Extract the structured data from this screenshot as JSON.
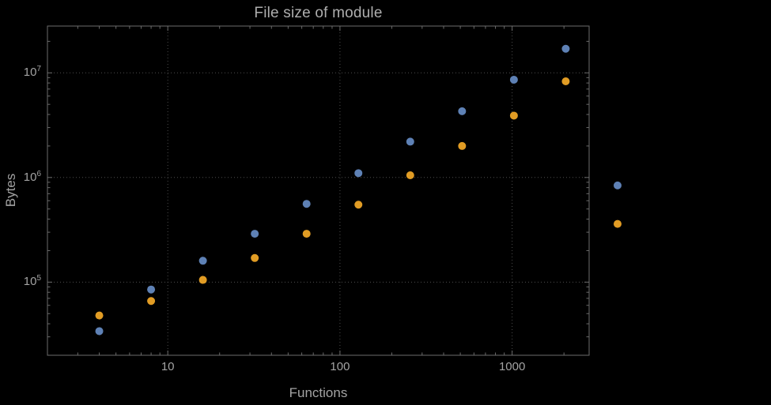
{
  "chart_data": {
    "type": "scatter",
    "title": "File size of module",
    "xlabel": "Functions",
    "ylabel": "Bytes",
    "x_scale": "log",
    "y_scale": "log",
    "xlim": [
      2,
      2800
    ],
    "ylim": [
      20000,
      28000000
    ],
    "grid": "dotted gray gridlines at decade ticks, framed plot, no legend",
    "points_outside_frame": true,
    "x": [
      4,
      8,
      16,
      32,
      64,
      128,
      256,
      512,
      1024,
      2048,
      4096
    ],
    "series": [
      {
        "name": "blue",
        "color": "#5e81b5",
        "values": [
          34000,
          85000,
          160000,
          290000,
          560000,
          1100000,
          2200000,
          4300000,
          8600000,
          17000000,
          840000
        ]
      },
      {
        "name": "orange",
        "color": "#e19c24",
        "values": [
          48000,
          66000,
          105000,
          170000,
          290000,
          550000,
          1050000,
          2000000,
          3900000,
          8300000,
          360000
        ]
      }
    ],
    "x_ticks": [
      {
        "value": 10,
        "label": "10"
      },
      {
        "value": 100,
        "label": "100"
      },
      {
        "value": 1000,
        "label": "1000"
      }
    ],
    "y_ticks": [
      {
        "value": 100000,
        "base": "10",
        "exp": "5"
      },
      {
        "value": 1000000,
        "base": "10",
        "exp": "6"
      },
      {
        "value": 10000000,
        "base": "10",
        "exp": "7"
      }
    ]
  },
  "colors": {
    "background": "#000000",
    "frame": "#6b6b6b",
    "grid": "#4d4d4d",
    "text": "#a3a3a3"
  }
}
